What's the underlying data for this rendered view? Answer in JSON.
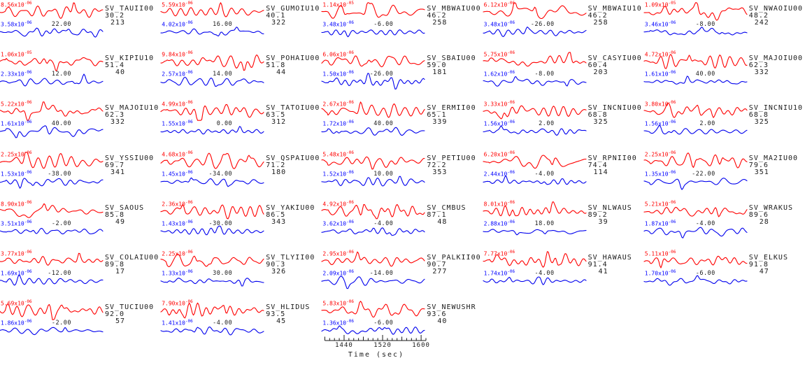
{
  "colors": {
    "trace_red": "#ff0000",
    "trace_blue": "#0000ee",
    "label_red": "#ff0000",
    "label_blue": "#0000ff",
    "text": "#1a1a1a",
    "background": "#ffffff"
  },
  "chart_data": {
    "type": "line",
    "title": "",
    "xlabel": "Time (sec)",
    "legend": [
      {
        "name": "observed-trace",
        "color": "#ff0000"
      },
      {
        "name": "synthetic-trace",
        "color": "#0000ee"
      }
    ],
    "axis": {
      "tick_labels": [
        "1440",
        "1520",
        "1600"
      ],
      "tick_values": [
        1440,
        1520,
        1600
      ],
      "range": [
        1395,
        1610
      ],
      "minor_step": 10
    },
    "stations": [
      {
        "name": "SV_TAUII00",
        "dist": "30.2",
        "az": "213",
        "red": {
          "m": "8.56x10",
          "e": "-06"
        },
        "blue": {
          "m": "3.58x10",
          "e": "-06"
        },
        "shift": "22.00"
      },
      {
        "name": "SV_GUMOIU10",
        "dist": "40.1",
        "az": "322",
        "red": {
          "m": "5.59x10",
          "e": "-06"
        },
        "blue": {
          "m": "4.02x10",
          "e": "-06"
        },
        "shift": "16.00"
      },
      {
        "name": "SV_MBWAIU00",
        "dist": "46.2",
        "az": "258",
        "red": {
          "m": "1.14x10",
          "e": "-05"
        },
        "blue": {
          "m": "3.48x10",
          "e": "-06"
        },
        "shift": "-6.00"
      },
      {
        "name": "SV_MBWAIU10",
        "dist": "46.2",
        "az": "258",
        "red": {
          "m": "6.12x10",
          "e": "-06"
        },
        "blue": {
          "m": "3.48x10",
          "e": "-06"
        },
        "shift": "-26.00"
      },
      {
        "name": "SV_NWAOIU00",
        "dist": "48.2",
        "az": "242",
        "red": {
          "m": "1.09x10",
          "e": "-05"
        },
        "blue": {
          "m": "3.46x10",
          "e": "-06"
        },
        "shift": "-8.00"
      },
      {
        "name": "SV_KIPIU10",
        "dist": "51.4",
        "az": "40",
        "red": {
          "m": "1.06x10",
          "e": "-05"
        },
        "blue": {
          "m": "2.33x10",
          "e": "-06"
        },
        "shift": "12.00"
      },
      {
        "name": "SV_POHAIU00",
        "dist": "51.8",
        "az": "44",
        "red": {
          "m": "9.84x10",
          "e": "-06"
        },
        "blue": {
          "m": "2.57x10",
          "e": "-06"
        },
        "shift": "14.00"
      },
      {
        "name": "SV_SBAIU00",
        "dist": "59.0",
        "az": "181",
        "red": {
          "m": "6.06x10",
          "e": "-06"
        },
        "blue": {
          "m": "1.50x10",
          "e": "-06"
        },
        "shift": "-26.00"
      },
      {
        "name": "SV_CASYIU00",
        "dist": "60.4",
        "az": "203",
        "red": {
          "m": "5.75x10",
          "e": "-06"
        },
        "blue": {
          "m": "1.62x10",
          "e": "-06"
        },
        "shift": "-8.00"
      },
      {
        "name": "SV_MAJOIU00",
        "dist": "62.3",
        "az": "332",
        "red": {
          "m": "4.72x10",
          "e": "-06"
        },
        "blue": {
          "m": "1.61x10",
          "e": "-06"
        },
        "shift": "40.00"
      },
      {
        "name": "SV_MAJOIU10",
        "dist": "62.3",
        "az": "332",
        "red": {
          "m": "5.22x10",
          "e": "-06"
        },
        "blue": {
          "m": "1.61x10",
          "e": "-06"
        },
        "shift": "40.00"
      },
      {
        "name": "SV_TATOIU00",
        "dist": "63.5",
        "az": "312",
        "red": {
          "m": "4.99x10",
          "e": "-06"
        },
        "blue": {
          "m": "1.55x10",
          "e": "-06"
        },
        "shift": "0.00"
      },
      {
        "name": "SV_ERMII00",
        "dist": "65.1",
        "az": "339",
        "red": {
          "m": "2.67x10",
          "e": "-06"
        },
        "blue": {
          "m": "1.72x10",
          "e": "-06"
        },
        "shift": "40.00"
      },
      {
        "name": "SV_INCNIU00",
        "dist": "68.8",
        "az": "325",
        "red": {
          "m": "3.33x10",
          "e": "-06"
        },
        "blue": {
          "m": "1.56x10",
          "e": "-06"
        },
        "shift": "2.00"
      },
      {
        "name": "SV_INCNIU10",
        "dist": "68.8",
        "az": "325",
        "red": {
          "m": "3.80x10",
          "e": "-06"
        },
        "blue": {
          "m": "1.56x10",
          "e": "-06"
        },
        "shift": "2.00"
      },
      {
        "name": "SV_YSSIU00",
        "dist": "69.7",
        "az": "341",
        "red": {
          "m": "2.25x10",
          "e": "-06"
        },
        "blue": {
          "m": "1.53x10",
          "e": "-06"
        },
        "shift": "-38.00"
      },
      {
        "name": "SV_QSPAIU00",
        "dist": "71.2",
        "az": "180",
        "red": {
          "m": "4.68x10",
          "e": "-06"
        },
        "blue": {
          "m": "1.45x10",
          "e": "-06"
        },
        "shift": "-34.00"
      },
      {
        "name": "SV_PETIU00",
        "dist": "72.2",
        "az": "353",
        "red": {
          "m": "5.48x10",
          "e": "-06"
        },
        "blue": {
          "m": "1.52x10",
          "e": "-06"
        },
        "shift": "10.00"
      },
      {
        "name": "SV_RPNII00",
        "dist": "74.4",
        "az": "114",
        "red": {
          "m": "6.20x10",
          "e": "-06"
        },
        "blue": {
          "m": "2.44x10",
          "e": "-06"
        },
        "shift": "-4.00"
      },
      {
        "name": "SV_MA2IU00",
        "dist": "79.6",
        "az": "351",
        "red": {
          "m": "2.25x10",
          "e": "-06"
        },
        "blue": {
          "m": "1.35x10",
          "e": "-06"
        },
        "shift": "-22.00"
      },
      {
        "name": "SV_SAOUS",
        "dist": "85.8",
        "az": "49",
        "red": {
          "m": "8.90x10",
          "e": "-06"
        },
        "blue": {
          "m": "3.51x10",
          "e": "-06"
        },
        "shift": "-2.00"
      },
      {
        "name": "SV_YAKIU00",
        "dist": "86.5",
        "az": "343",
        "red": {
          "m": "2.36x10",
          "e": "-06"
        },
        "blue": {
          "m": "1.43x10",
          "e": "-06"
        },
        "shift": "-30.00"
      },
      {
        "name": "SV_CMBUS",
        "dist": "87.1",
        "az": "48",
        "red": {
          "m": "4.92x10",
          "e": "-06"
        },
        "blue": {
          "m": "3.62x10",
          "e": "-06"
        },
        "shift": "-4.00"
      },
      {
        "name": "SV_NLWAUS",
        "dist": "89.2",
        "az": "39",
        "red": {
          "m": "8.01x10",
          "e": "-06"
        },
        "blue": {
          "m": "2.88x10",
          "e": "-06"
        },
        "shift": "18.00"
      },
      {
        "name": "SV_WRAKUS",
        "dist": "89.6",
        "az": "28",
        "red": {
          "m": "5.21x10",
          "e": "-06"
        },
        "blue": {
          "m": "1.87x10",
          "e": "-06"
        },
        "shift": "-4.00"
      },
      {
        "name": "SV_COLAIU00",
        "dist": "89.8",
        "az": "17",
        "red": {
          "m": "3.77x10",
          "e": "-06"
        },
        "blue": {
          "m": "1.69x10",
          "e": "-06"
        },
        "shift": "-12.00"
      },
      {
        "name": "SV_TLYII00",
        "dist": "90.3",
        "az": "326",
        "red": {
          "m": "2.25x10",
          "e": "-06"
        },
        "blue": {
          "m": "1.33x10",
          "e": "-06"
        },
        "shift": "30.00"
      },
      {
        "name": "SV_PALKII00",
        "dist": "90.7",
        "az": "277",
        "red": {
          "m": "2.95x10",
          "e": "-06"
        },
        "blue": {
          "m": "2.09x10",
          "e": "-06"
        },
        "shift": "-14.00"
      },
      {
        "name": "SV_HAWAUS",
        "dist": "91.4",
        "az": "41",
        "red": {
          "m": "7.77x10",
          "e": "-06"
        },
        "blue": {
          "m": "1.74x10",
          "e": "-06"
        },
        "shift": "-4.00"
      },
      {
        "name": "SV_ELKUS",
        "dist": "91.8",
        "az": "47",
        "red": {
          "m": "5.11x10",
          "e": "-06"
        },
        "blue": {
          "m": "1.70x10",
          "e": "-06"
        },
        "shift": "-6.00"
      },
      {
        "name": "SV_TUCIU00",
        "dist": "92.0",
        "az": "57",
        "red": {
          "m": "5.69x10",
          "e": "-06"
        },
        "blue": {
          "m": "1.86x10",
          "e": "-06"
        },
        "shift": "-2.00"
      },
      {
        "name": "SV_HLIDUS",
        "dist": "93.5",
        "az": "45",
        "red": {
          "m": "7.90x10",
          "e": "-06"
        },
        "blue": {
          "m": "1.41x10",
          "e": "-06"
        },
        "shift": "-4.00"
      },
      {
        "name": "SV_NEWUSHR",
        "dist": "93.6",
        "az": "40",
        "red": {
          "m": "5.83x10",
          "e": "-06"
        },
        "blue": {
          "m": "1.36x10",
          "e": "-06"
        },
        "shift": "-6.00"
      }
    ]
  }
}
